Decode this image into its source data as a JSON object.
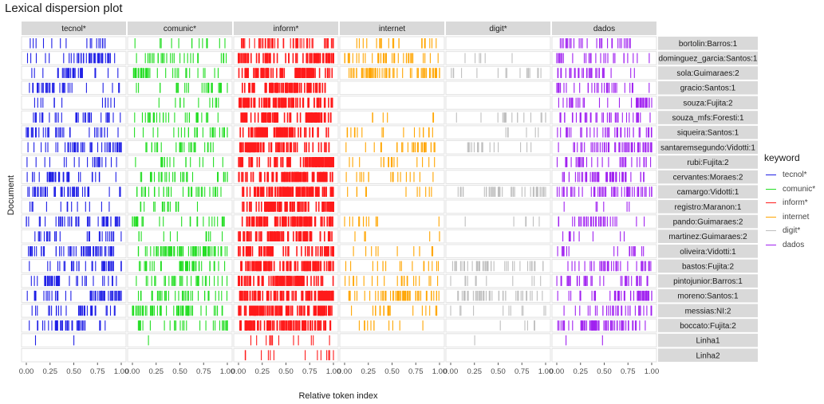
{
  "chart_data": {
    "type": "lexical-dispersion",
    "title": "Lexical dispersion plot",
    "xlabel": "Relative token index",
    "ylabel": "Document",
    "xlim": [
      0,
      1
    ],
    "x_ticks": [
      "0.00",
      "0.25",
      "0.50",
      "0.75",
      "1.00"
    ],
    "legend_title": "keyword",
    "legend_position": "right",
    "panels": [
      {
        "keyword": "tecnol*",
        "color": "#1f1fe6"
      },
      {
        "keyword": "comunic*",
        "color": "#22dd22"
      },
      {
        "keyword": "inform*",
        "color": "#ff1a1a"
      },
      {
        "keyword": "internet",
        "color": "#ffa500"
      },
      {
        "keyword": "digit*",
        "color": "#bebebe"
      },
      {
        "keyword": "dados",
        "color": "#a020f0"
      }
    ],
    "documents": [
      "bortolin:Barros:1",
      "dominguez_garcia:Santos:1",
      "sola:Guimaraes:2",
      "gracio:Santos:1",
      "souza:Fujita:2",
      "souza_mfs:Foresti:1",
      "siqueira:Santos:1",
      "santaremsegundo:Vidotti:1",
      "rubi:Fujita:2",
      "cervantes:Moraes:2",
      "camargo:Vidotti:1",
      "registro:Maranon:1",
      "pando:Guimaraes:2",
      "martinez:Guimaraes:2",
      "oliveira:Vidotti:1",
      "bastos:Fujita:2",
      "pintojunior:Barros:1",
      "moreno:Santos:1",
      "messias:NI:2",
      "boccato:Fujita:2",
      "Linha1",
      "Linha2"
    ],
    "density": [
      [
        0.15,
        0.12,
        0.55,
        0.2,
        0.0,
        0.25
      ],
      [
        0.4,
        0.25,
        0.75,
        0.35,
        0.05,
        0.25
      ],
      [
        0.3,
        0.35,
        0.85,
        0.6,
        0.15,
        0.3
      ],
      [
        0.3,
        0.25,
        0.8,
        0.0,
        0.0,
        0.3
      ],
      [
        0.12,
        0.1,
        0.8,
        0.0,
        0.0,
        0.35
      ],
      [
        0.3,
        0.3,
        0.85,
        0.05,
        0.15,
        0.35
      ],
      [
        0.35,
        0.25,
        0.9,
        0.15,
        0.05,
        0.35
      ],
      [
        0.45,
        0.25,
        0.9,
        0.3,
        0.15,
        0.55
      ],
      [
        0.2,
        0.15,
        0.85,
        0.15,
        0.0,
        0.3
      ],
      [
        0.35,
        0.3,
        0.9,
        0.15,
        0.0,
        0.45
      ],
      [
        0.45,
        0.3,
        0.95,
        0.1,
        0.4,
        0.55
      ],
      [
        0.12,
        0.15,
        0.85,
        0.0,
        0.0,
        0.05
      ],
      [
        0.4,
        0.3,
        0.9,
        0.12,
        0.05,
        0.3
      ],
      [
        0.25,
        0.1,
        0.75,
        0.05,
        0.0,
        0.08
      ],
      [
        0.5,
        0.7,
        0.8,
        0.1,
        0.0,
        0.15
      ],
      [
        0.35,
        0.4,
        0.85,
        0.15,
        0.35,
        0.35
      ],
      [
        0.4,
        0.3,
        0.85,
        0.2,
        0.1,
        0.35
      ],
      [
        0.45,
        0.35,
        0.95,
        0.5,
        0.4,
        0.45
      ],
      [
        0.3,
        0.6,
        0.95,
        0.2,
        0.1,
        0.3
      ],
      [
        0.4,
        0.3,
        0.9,
        0.1,
        0.05,
        0.6
      ],
      [
        0.02,
        0.01,
        0.12,
        0.0,
        0.01,
        0.02
      ],
      [
        0.0,
        0.0,
        0.12,
        0.0,
        0.0,
        0.0
      ]
    ],
    "grid": true
  }
}
